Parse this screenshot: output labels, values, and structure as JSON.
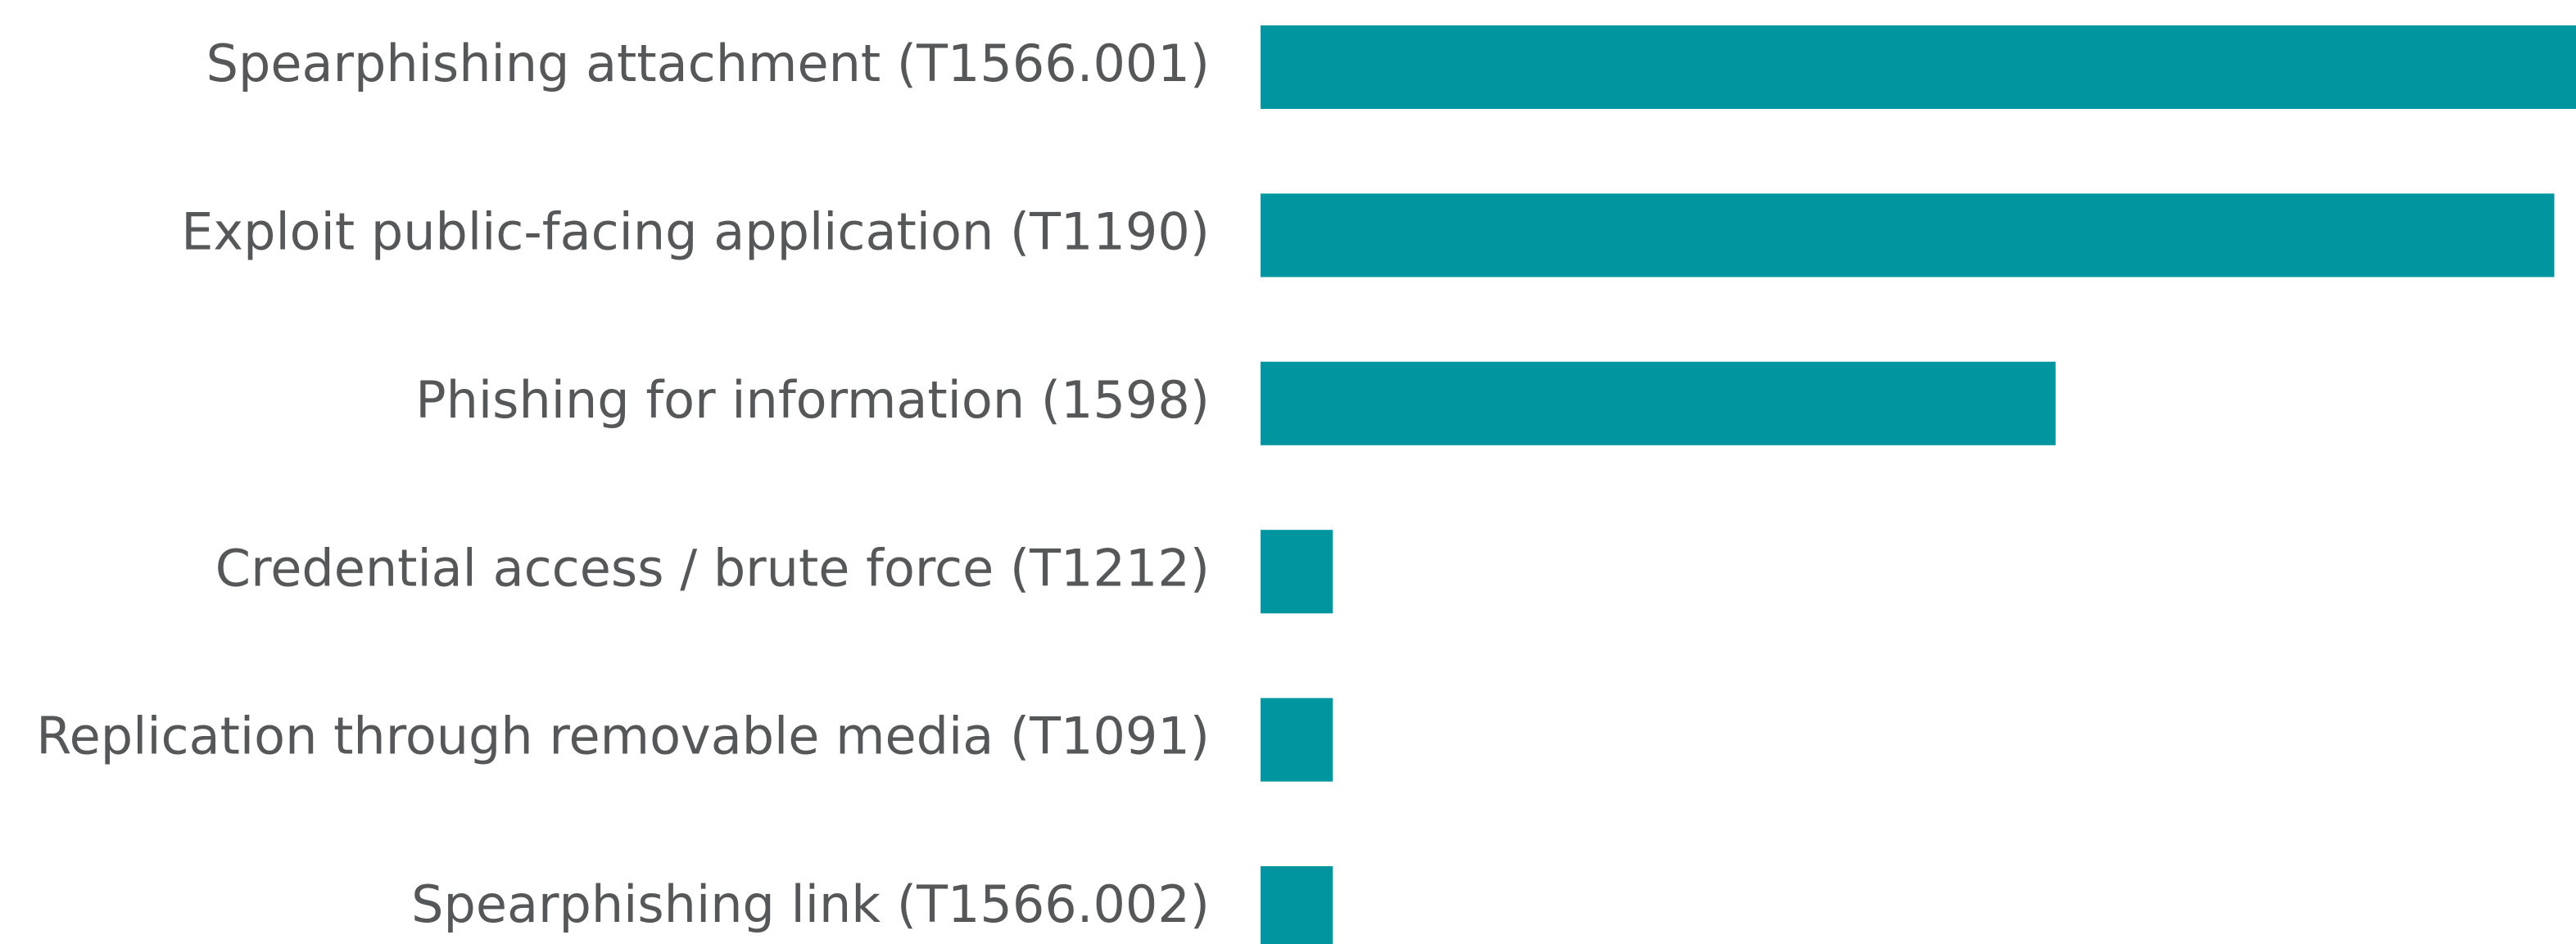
{
  "chart_data": {
    "type": "hbar",
    "categories": [
      "Spearphishing attachment (T1566.001)",
      "Exploit public-facing application (T1190)",
      "Phishing for information (1598)",
      "Credential access / brute force (T1212)",
      "Replication through removable media (T1091)",
      "Spearphishing link (T1566.002)"
    ],
    "values": [
      18.2,
      17.9,
      11,
      1,
      1,
      1
    ],
    "color": "#00959f",
    "xlim": [
      0,
      18.2
    ]
  }
}
